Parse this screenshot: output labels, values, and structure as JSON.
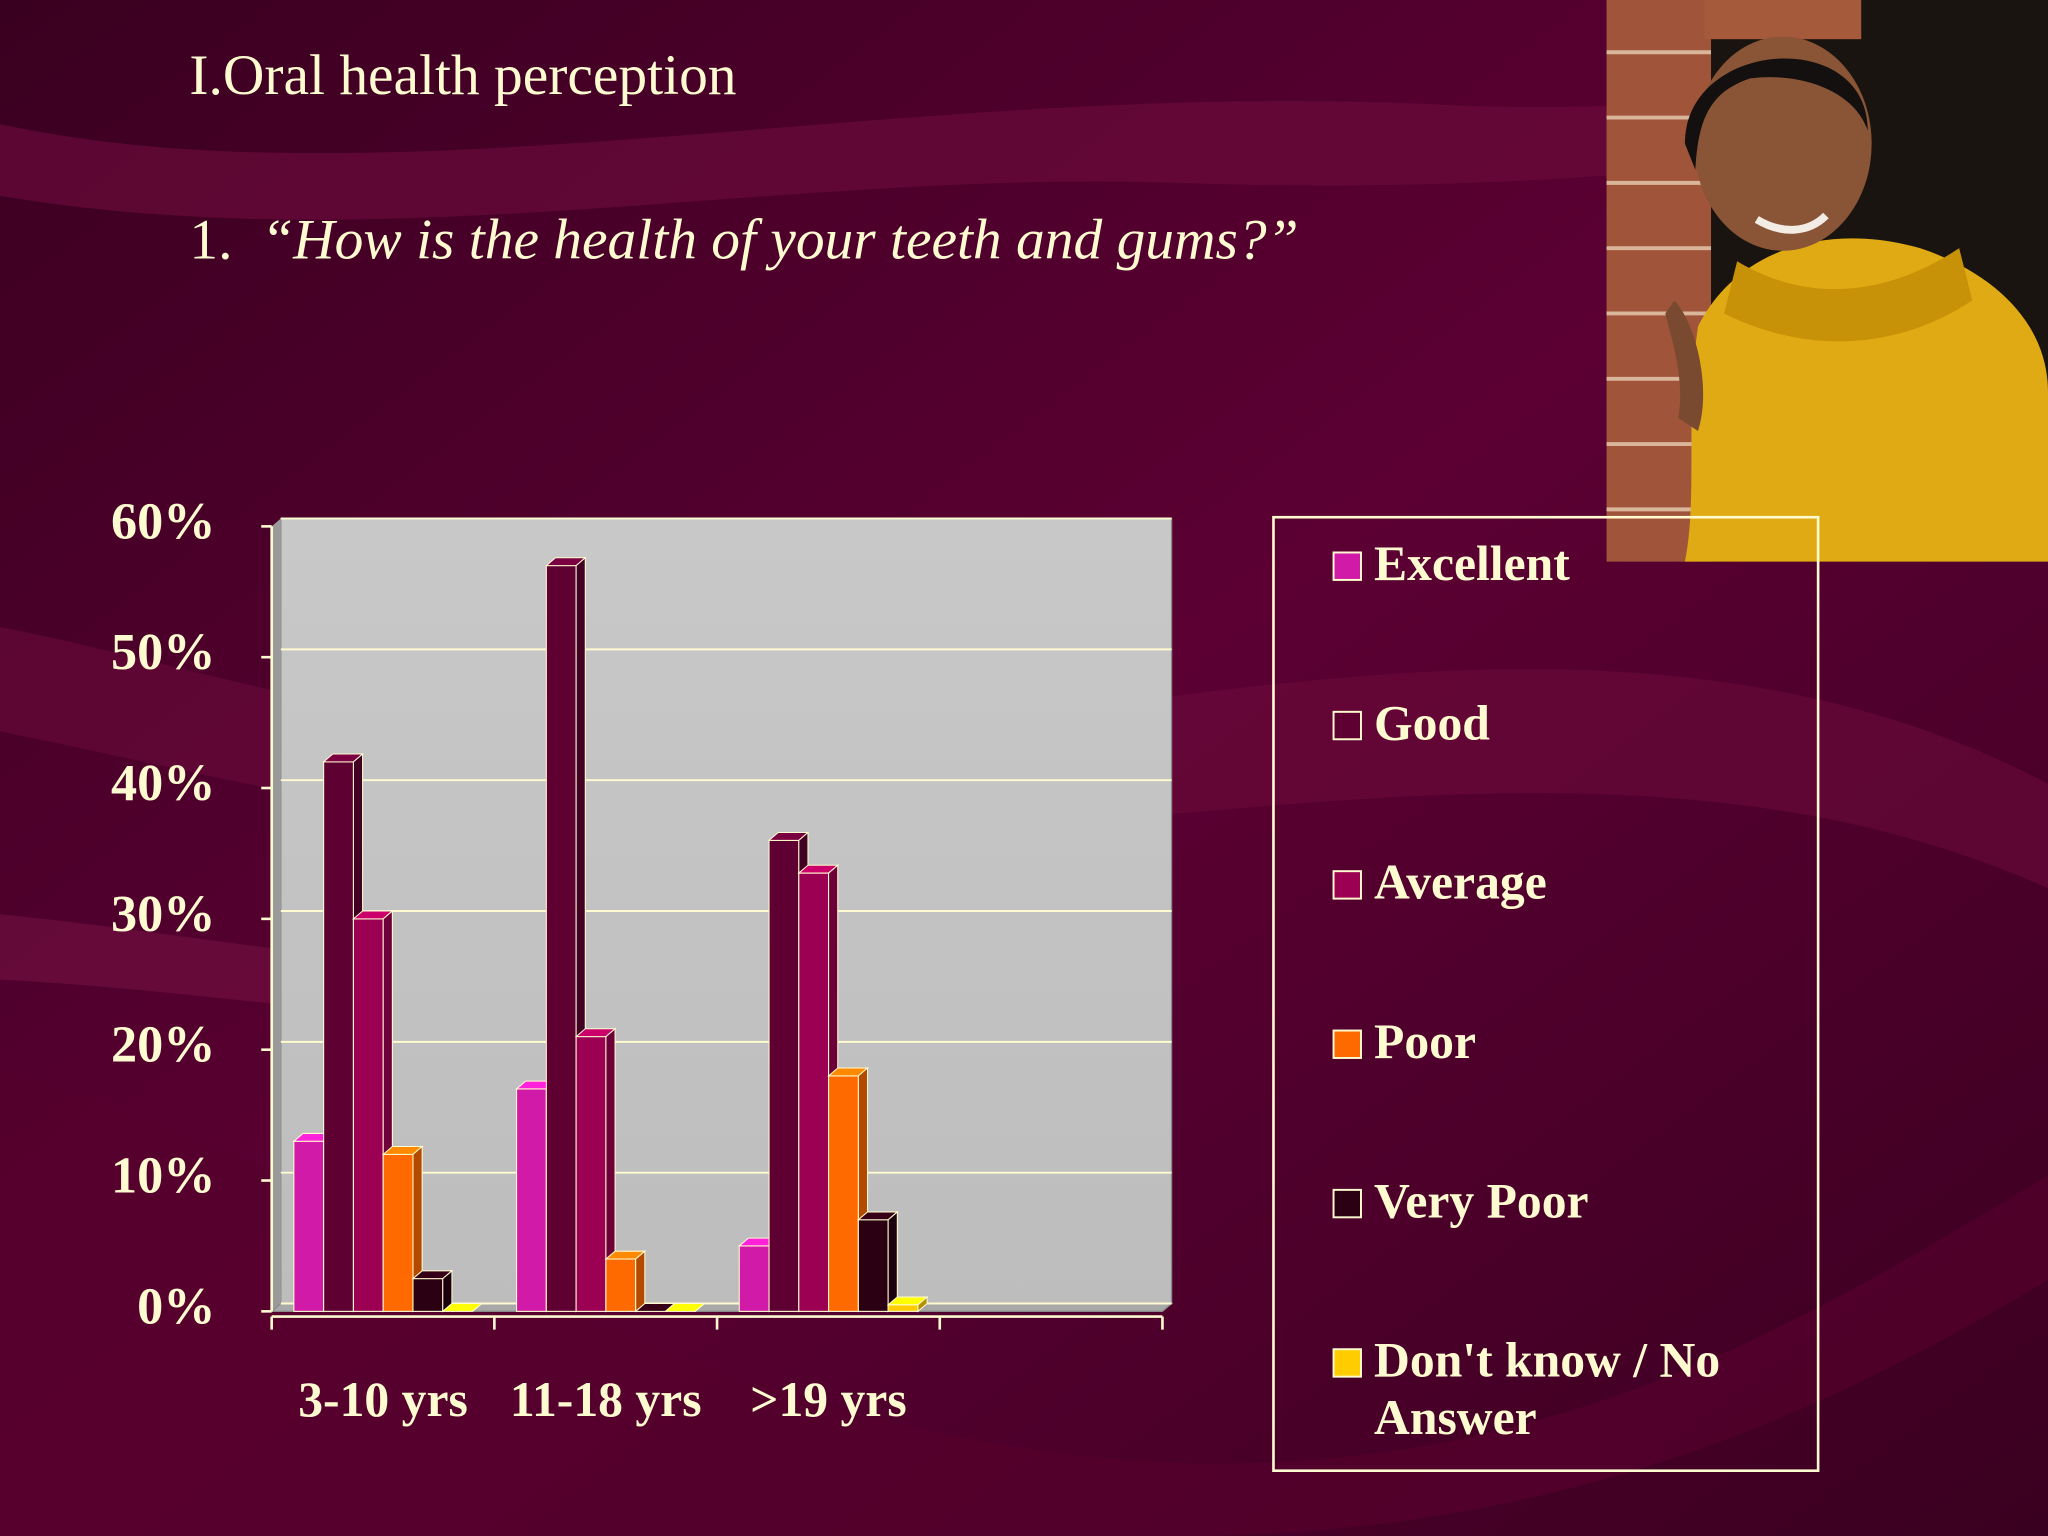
{
  "chart_data": {
    "type": "bar",
    "title": "I.Oral health perception",
    "question_number": "1.",
    "question": "“How is the health of your teeth and gums?”",
    "categories": [
      "3-10 yrs",
      "11-18 yrs",
      ">19 yrs",
      null
    ],
    "series": [
      {
        "name": "Excellent",
        "color": "#d11aa8",
        "values": [
          13,
          17,
          5,
          null
        ]
      },
      {
        "name": "Good",
        "color": "#5e0032",
        "values": [
          42,
          57,
          36,
          null
        ]
      },
      {
        "name": "Average",
        "color": "#9c0052",
        "values": [
          30,
          21,
          33.5,
          null
        ]
      },
      {
        "name": "Poor",
        "color": "#ff6a00",
        "values": [
          12,
          4,
          18,
          null
        ]
      },
      {
        "name": "Very Poor",
        "color": "#2a0012",
        "values": [
          2.5,
          0,
          7,
          null
        ]
      },
      {
        "name": "Don't know / No Answer",
        "color": "#ffcc00",
        "values": [
          0,
          0,
          0.5,
          null
        ]
      }
    ],
    "ylim": [
      0,
      60
    ],
    "yticks": [
      {
        "value": 0,
        "label": "0%"
      },
      {
        "value": 10,
        "label": "10%"
      },
      {
        "value": 20,
        "label": "20%"
      },
      {
        "value": 30,
        "label": "30%"
      },
      {
        "value": 40,
        "label": "40%"
      },
      {
        "value": 50,
        "label": "50%"
      },
      {
        "value": 60,
        "label": "60%"
      }
    ],
    "grid": true,
    "legend": "right"
  }
}
